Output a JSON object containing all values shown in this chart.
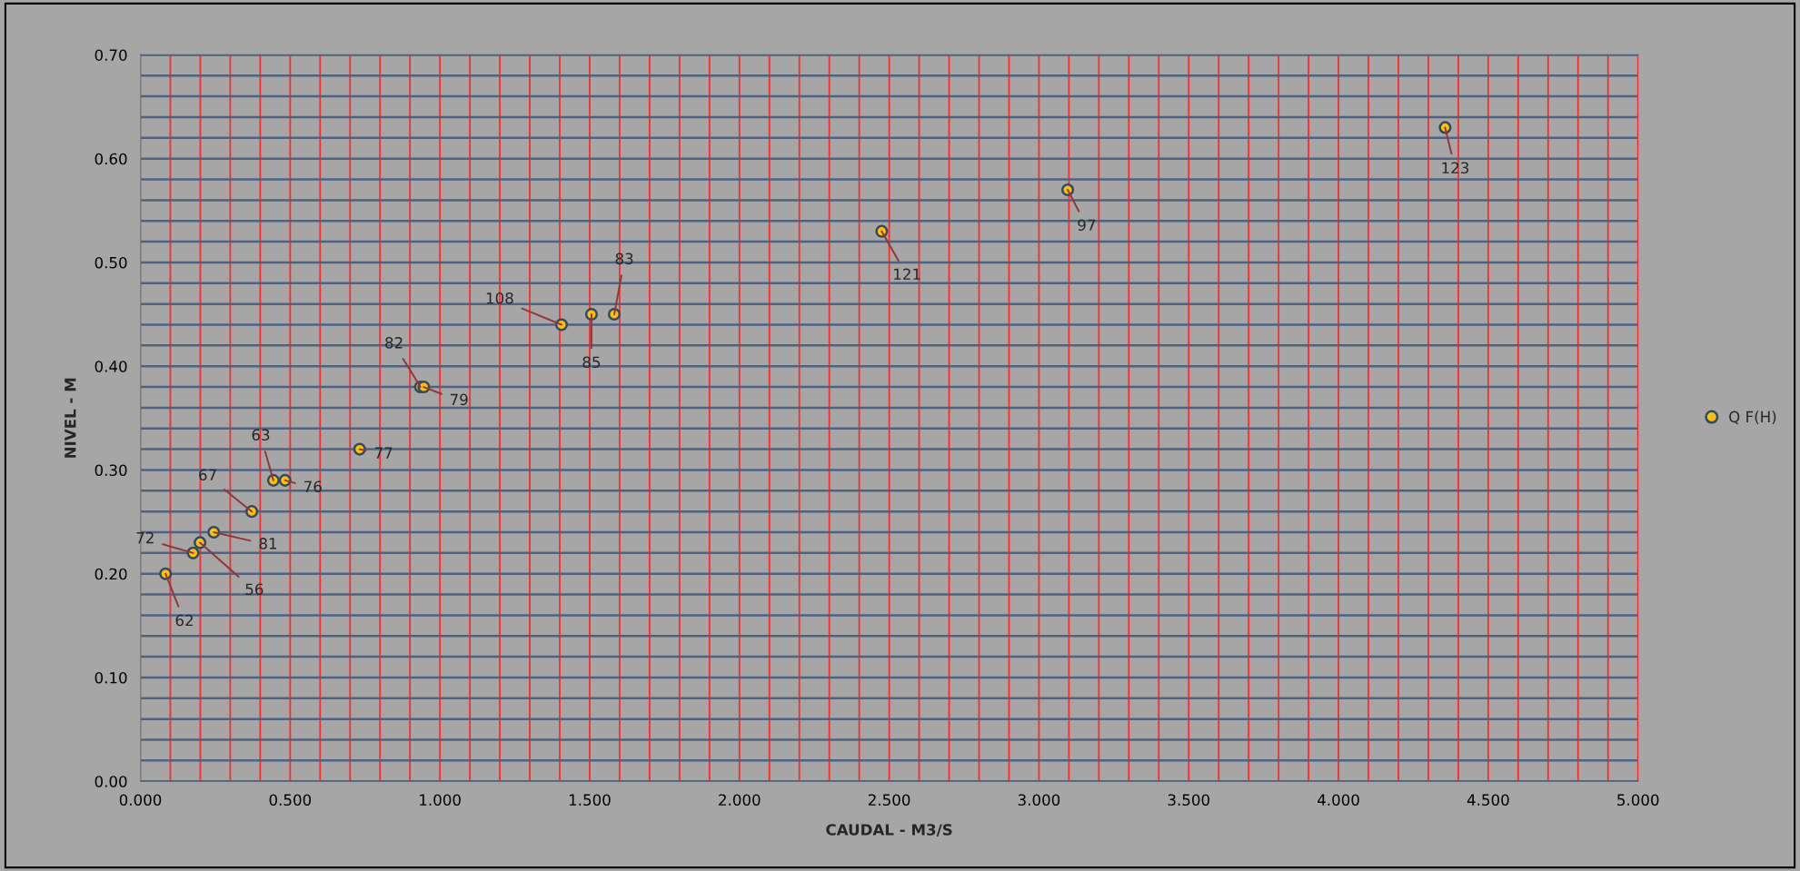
{
  "chart_data": {
    "type": "scatter",
    "xlabel": "CAUDAL - M3/S",
    "ylabel": "NIVEL - M",
    "series": [
      {
        "name": "Q F(H)",
        "color": "#ffc000",
        "x": [
          0.084,
          0.176,
          0.199,
          0.245,
          0.372,
          0.444,
          0.483,
          0.732,
          0.935,
          0.946,
          1.406,
          1.506,
          1.582,
          2.475,
          3.096,
          4.356
        ],
        "values": [
          0.2,
          0.22,
          0.23,
          0.24,
          0.26,
          0.29,
          0.29,
          0.32,
          0.38,
          0.38,
          0.44,
          0.45,
          0.45,
          0.53,
          0.57,
          0.63
        ]
      }
    ],
    "annotations": [
      {
        "text": "62",
        "x": 0.084,
        "y": 0.2
      },
      {
        "text": "72",
        "x": 0.176,
        "y": 0.22
      },
      {
        "text": "56",
        "x": 0.199,
        "y": 0.23
      },
      {
        "text": "81",
        "x": 0.245,
        "y": 0.24
      },
      {
        "text": "67",
        "x": 0.372,
        "y": 0.26
      },
      {
        "text": "63",
        "x": 0.444,
        "y": 0.29
      },
      {
        "text": "76",
        "x": 0.483,
        "y": 0.29
      },
      {
        "text": "77",
        "x": 0.732,
        "y": 0.32
      },
      {
        "text": "82",
        "x": 0.935,
        "y": 0.38
      },
      {
        "text": "79",
        "x": 0.946,
        "y": 0.38
      },
      {
        "text": "108",
        "x": 1.406,
        "y": 0.44
      },
      {
        "text": "85",
        "x": 1.506,
        "y": 0.45
      },
      {
        "text": "83",
        "x": 1.582,
        "y": 0.45
      },
      {
        "text": "121",
        "x": 2.475,
        "y": 0.53
      },
      {
        "text": "97",
        "x": 3.096,
        "y": 0.57
      },
      {
        "text": "123",
        "x": 4.356,
        "y": 0.63
      }
    ],
    "xlim": [
      0,
      5.0
    ],
    "ylim": [
      0,
      0.7
    ],
    "xticks": [
      {
        "value": 0,
        "label": "0.000"
      },
      {
        "value": 0.1,
        "label": null
      },
      {
        "value": 0.2,
        "label": null
      },
      {
        "value": 0.3,
        "label": null
      },
      {
        "value": 0.4,
        "label": null
      },
      {
        "value": 0.5,
        "label": "0.500"
      },
      {
        "value": 0.6,
        "label": null
      },
      {
        "value": 0.7,
        "label": null
      },
      {
        "value": 0.8,
        "label": null
      },
      {
        "value": 0.9,
        "label": null
      },
      {
        "value": 1.0,
        "label": "1.000"
      },
      {
        "value": 1.1,
        "label": null
      },
      {
        "value": 1.2,
        "label": null
      },
      {
        "value": 1.3,
        "label": null
      },
      {
        "value": 1.4,
        "label": null
      },
      {
        "value": 1.5,
        "label": "1.500"
      },
      {
        "value": 1.6,
        "label": null
      },
      {
        "value": 1.7,
        "label": null
      },
      {
        "value": 1.8,
        "label": null
      },
      {
        "value": 1.9,
        "label": null
      },
      {
        "value": 2.0,
        "label": "2.000"
      },
      {
        "value": 2.1,
        "label": null
      },
      {
        "value": 2.2,
        "label": null
      },
      {
        "value": 2.3,
        "label": null
      },
      {
        "value": 2.4,
        "label": null
      },
      {
        "value": 2.5,
        "label": "2.500"
      },
      {
        "value": 2.6,
        "label": null
      },
      {
        "value": 2.7,
        "label": null
      },
      {
        "value": 2.8,
        "label": null
      },
      {
        "value": 2.9,
        "label": null
      },
      {
        "value": 3.0,
        "label": "3.000"
      },
      {
        "value": 3.1,
        "label": null
      },
      {
        "value": 3.2,
        "label": null
      },
      {
        "value": 3.3,
        "label": null
      },
      {
        "value": 3.4,
        "label": null
      },
      {
        "value": 3.5,
        "label": "3.500"
      },
      {
        "value": 3.6,
        "label": null
      },
      {
        "value": 3.7,
        "label": null
      },
      {
        "value": 3.8,
        "label": null
      },
      {
        "value": 3.9,
        "label": null
      },
      {
        "value": 4.0,
        "label": "4.000"
      },
      {
        "value": 4.1,
        "label": null
      },
      {
        "value": 4.2,
        "label": null
      },
      {
        "value": 4.3,
        "label": null
      },
      {
        "value": 4.4,
        "label": null
      },
      {
        "value": 4.5,
        "label": "4.500"
      },
      {
        "value": 4.6,
        "label": null
      },
      {
        "value": 4.7,
        "label": null
      },
      {
        "value": 4.8,
        "label": null
      },
      {
        "value": 4.9,
        "label": null
      },
      {
        "value": 5.0,
        "label": "5.000"
      }
    ],
    "yticks": [
      {
        "value": 0,
        "label": "0.00"
      },
      {
        "value": 0.02,
        "label": null
      },
      {
        "value": 0.04,
        "label": null
      },
      {
        "value": 0.06,
        "label": null
      },
      {
        "value": 0.08,
        "label": null
      },
      {
        "value": 0.1,
        "label": "0.10"
      },
      {
        "value": 0.12,
        "label": null
      },
      {
        "value": 0.14,
        "label": null
      },
      {
        "value": 0.16,
        "label": null
      },
      {
        "value": 0.18,
        "label": null
      },
      {
        "value": 0.2,
        "label": "0.20"
      },
      {
        "value": 0.22,
        "label": null
      },
      {
        "value": 0.24,
        "label": null
      },
      {
        "value": 0.26,
        "label": null
      },
      {
        "value": 0.28,
        "label": null
      },
      {
        "value": 0.3,
        "label": "0.30"
      },
      {
        "value": 0.32,
        "label": null
      },
      {
        "value": 0.34,
        "label": null
      },
      {
        "value": 0.36,
        "label": null
      },
      {
        "value": 0.38,
        "label": null
      },
      {
        "value": 0.4,
        "label": "0.40"
      },
      {
        "value": 0.42,
        "label": null
      },
      {
        "value": 0.44,
        "label": null
      },
      {
        "value": 0.46,
        "label": null
      },
      {
        "value": 0.48,
        "label": null
      },
      {
        "value": 0.5,
        "label": "0.50"
      },
      {
        "value": 0.52,
        "label": null
      },
      {
        "value": 0.54,
        "label": null
      },
      {
        "value": 0.56,
        "label": null
      },
      {
        "value": 0.58,
        "label": null
      },
      {
        "value": 0.6,
        "label": "0.60"
      },
      {
        "value": 0.62,
        "label": null
      },
      {
        "value": 0.64,
        "label": null
      },
      {
        "value": 0.66,
        "label": null
      },
      {
        "value": 0.68,
        "label": null
      },
      {
        "value": 0.7,
        "label": "0.70"
      }
    ],
    "grid": true,
    "legend": "right",
    "marker": "circle"
  }
}
